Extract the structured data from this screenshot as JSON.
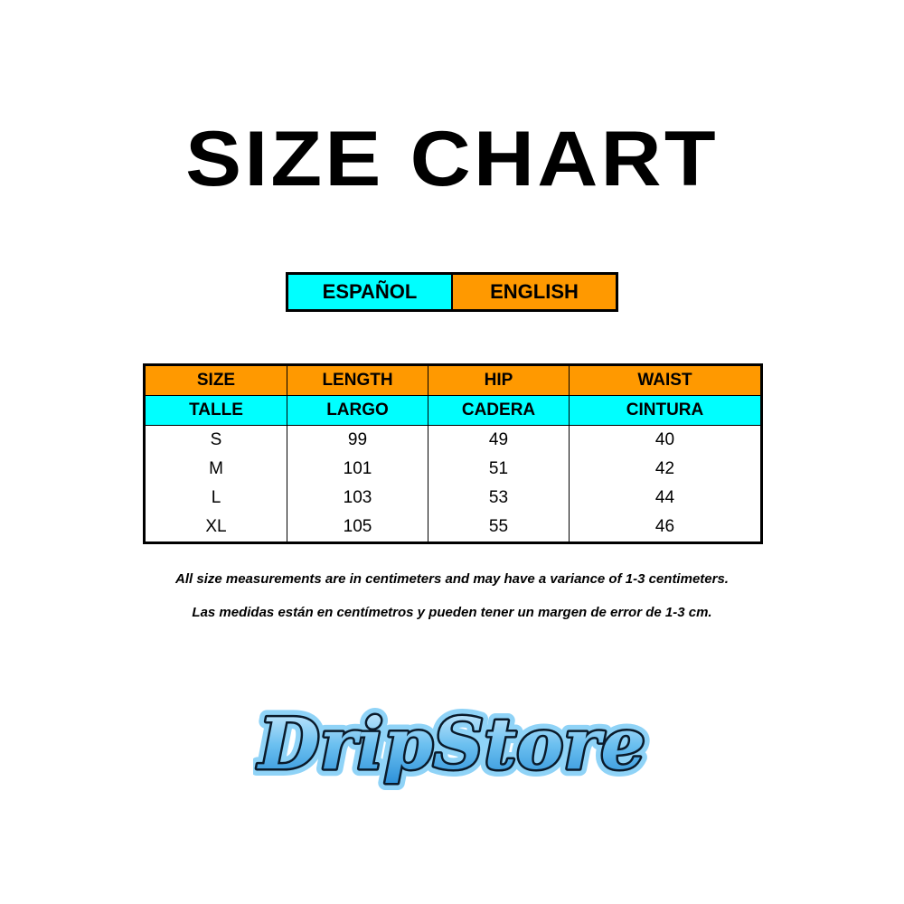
{
  "title": "SIZE CHART",
  "languages": {
    "spanish": "ESPAÑOL",
    "english": "ENGLISH"
  },
  "colors": {
    "cyan": "#00ffff",
    "orange": "#ff9900"
  },
  "table": {
    "header_en": [
      "SIZE",
      "LENGTH",
      "HIP",
      "WAIST"
    ],
    "header_es": [
      "TALLE",
      "LARGO",
      "CADERA",
      "CINTURA"
    ],
    "rows": [
      [
        "S",
        "99",
        "49",
        "40"
      ],
      [
        "M",
        "101",
        "51",
        "42"
      ],
      [
        "L",
        "103",
        "53",
        "44"
      ],
      [
        "XL",
        "105",
        "55",
        "46"
      ]
    ]
  },
  "notes": {
    "english": "All size measurements are in centimeters and may have a variance of 1-3 centimeters.",
    "spanish": "Las medidas están en centímetros y pueden tener un margen de error de 1-3 cm."
  },
  "logo": {
    "text": "DripStore"
  }
}
